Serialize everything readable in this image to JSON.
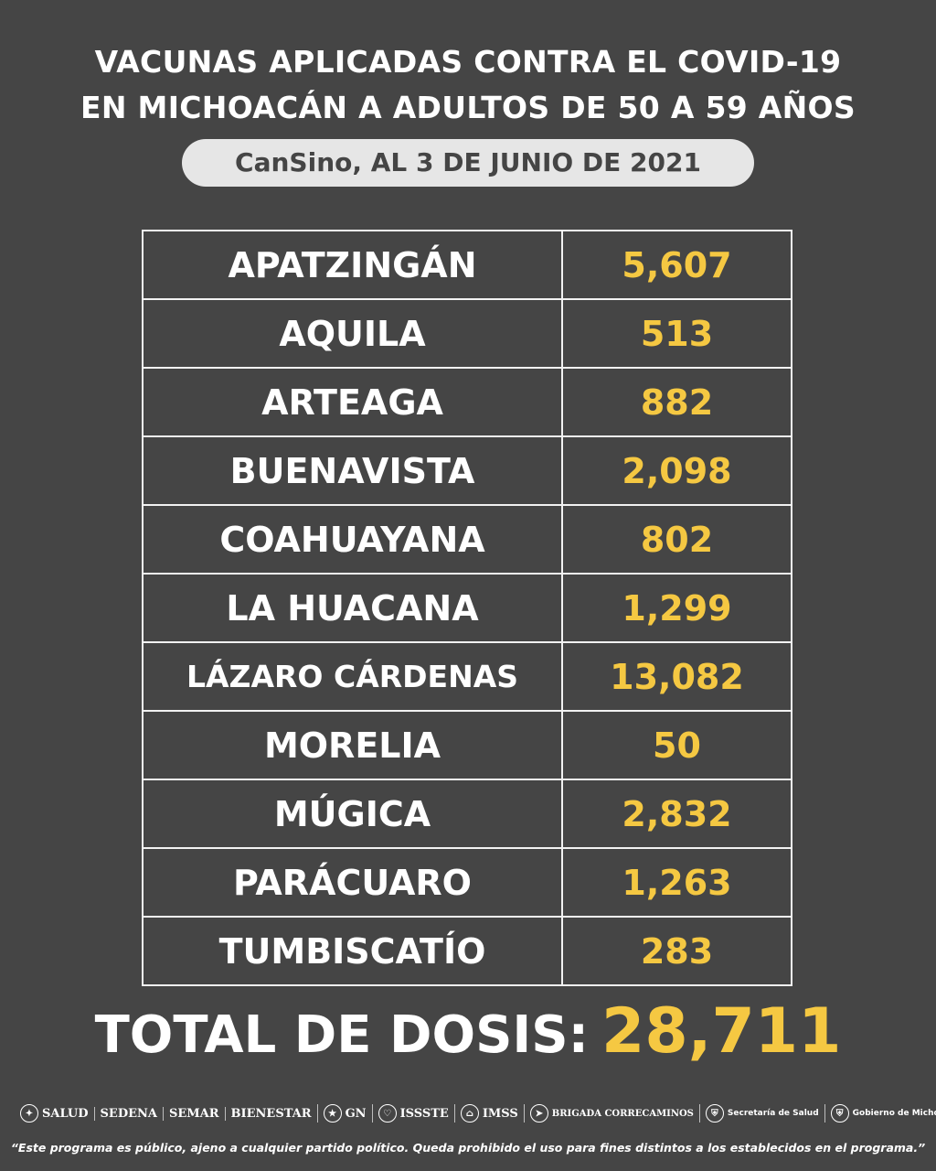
{
  "header": {
    "line1": "VACUNAS APLICADAS CONTRA EL COVID-19",
    "line2": "EN MICHOACÁN A ADULTOS DE 50 A 59 AÑOS",
    "subtitle": "CanSino, AL 3 DE JUNIO DE 2021"
  },
  "rows": [
    {
      "municipio": "APATZINGÁN",
      "dosis": "5,607"
    },
    {
      "municipio": "AQUILA",
      "dosis": "513"
    },
    {
      "municipio": "ARTEAGA",
      "dosis": "882"
    },
    {
      "municipio": "BUENAVISTA",
      "dosis": "2,098"
    },
    {
      "municipio": "COAHUAYANA",
      "dosis": "802"
    },
    {
      "municipio": "LA HUACANA",
      "dosis": "1,299"
    },
    {
      "municipio": "LÁZARO CÁRDENAS",
      "dosis": "13,082"
    },
    {
      "municipio": "MORELIA",
      "dosis": "50"
    },
    {
      "municipio": "MÚGICA",
      "dosis": "2,832"
    },
    {
      "municipio": "PARÁCUARO",
      "dosis": "1,263"
    },
    {
      "municipio": "TUMBISCATÍO",
      "dosis": "283"
    }
  ],
  "total": {
    "label": "TOTAL DE DOSIS:",
    "value": "28,711"
  },
  "logos": [
    {
      "name": "SALUD",
      "icon": "eagle-seal-icon"
    },
    {
      "name": "SEDENA",
      "icon": ""
    },
    {
      "name": "SEMAR",
      "icon": ""
    },
    {
      "name": "BIENESTAR",
      "icon": ""
    },
    {
      "name": "GN",
      "icon": "guardia-nacional-icon"
    },
    {
      "name": "ISSSTE",
      "icon": "issste-icon"
    },
    {
      "name": "IMSS",
      "icon": "imss-icon"
    },
    {
      "name": "BRIGADA CORRECAMINOS",
      "icon": "correcaminos-icon"
    },
    {
      "name": "Secretaría de Salud",
      "icon": "michoacan-shield-icon"
    },
    {
      "name": "Gobierno de Michoacán",
      "icon": "michoacan-shield-icon"
    }
  ],
  "disclaimer": "“Este programa es público, ajeno a cualquier partido político. Queda prohibido el uso para fines distintos a los establecidos en el programa.”",
  "colors": {
    "background": "#454545",
    "accent": "#f5c842",
    "pill": "#e6e6e6"
  }
}
